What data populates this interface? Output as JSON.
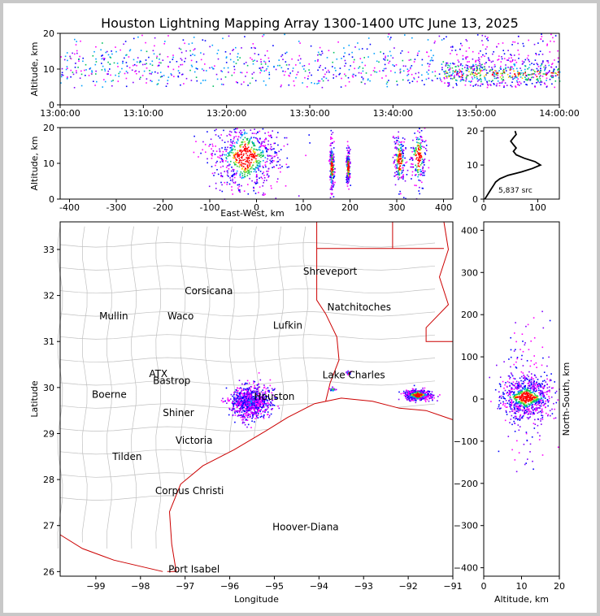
{
  "chart_data": [
    {
      "type": "scatter",
      "title": "Houston Lightning Mapping Array 1300-1400 UTC June 13, 2025",
      "ylabel": "Altitude, km",
      "xlim": [
        "13:00:00",
        "14:00:00"
      ],
      "ylim": [
        0,
        20
      ],
      "x_ticks": [
        "13:00:00",
        "13:10:00",
        "13:20:00",
        "13:30:00",
        "13:40:00",
        "13:50:00",
        "14:00:00"
      ],
      "y_ticks": [
        0,
        10,
        20
      ],
      "clusters": [
        {
          "t_start": "13:00:00",
          "t_end": "13:46:00",
          "alt_min": 5,
          "alt_max": 20,
          "center_alt": 10,
          "density": "low"
        },
        {
          "t_start": "13:46:00",
          "t_end": "14:00:00",
          "alt_min": 5,
          "alt_max": 20,
          "center_alt": 9,
          "density": "high"
        }
      ]
    },
    {
      "type": "scatter",
      "xlabel": "East-West, km",
      "ylabel": "Altitude, km",
      "xlim": [
        -420,
        420
      ],
      "ylim": [
        0,
        20
      ],
      "x_ticks": [
        -400,
        -300,
        -200,
        -100,
        0,
        100,
        200,
        300,
        400
      ],
      "y_ticks": [
        0,
        10,
        20
      ],
      "clusters": [
        {
          "x": -25,
          "x_spread": 60,
          "alt": 12,
          "alt_spread": 8
        },
        {
          "x": 160,
          "x_spread": 4,
          "alt": 9,
          "alt_spread": 6
        },
        {
          "x": 195,
          "x_spread": 3,
          "alt": 9,
          "alt_spread": 4
        },
        {
          "x": 305,
          "x_spread": 10,
          "alt": 11,
          "alt_spread": 7
        },
        {
          "x": 345,
          "x_spread": 15,
          "alt": 12,
          "alt_spread": 7
        }
      ]
    },
    {
      "type": "line",
      "xlim": [
        0,
        140
      ],
      "ylim": [
        0,
        21
      ],
      "x_ticks": [
        0,
        100
      ],
      "y_ticks": [
        0,
        10,
        20
      ],
      "annotation": "5,837 src",
      "profile": [
        [
          2,
          0
        ],
        [
          6,
          1
        ],
        [
          10,
          2
        ],
        [
          14,
          3
        ],
        [
          18,
          4
        ],
        [
          22,
          5
        ],
        [
          30,
          6
        ],
        [
          45,
          7
        ],
        [
          70,
          8
        ],
        [
          90,
          9
        ],
        [
          105,
          10
        ],
        [
          95,
          11
        ],
        [
          75,
          12
        ],
        [
          60,
          13
        ],
        [
          55,
          14
        ],
        [
          60,
          15
        ],
        [
          55,
          16
        ],
        [
          50,
          17
        ],
        [
          55,
          18
        ],
        [
          60,
          19
        ],
        [
          58,
          20
        ]
      ]
    },
    {
      "type": "scatter",
      "xlabel": "Longitude",
      "ylabel": "Latitude",
      "xlim": [
        -99.8,
        -91
      ],
      "ylim": [
        25.9,
        33.6
      ],
      "x_ticks": [
        -99,
        -98,
        -97,
        -96,
        -95,
        -94,
        -93,
        -92,
        -91
      ],
      "y_ticks": [
        26,
        27,
        28,
        29,
        30,
        31,
        32,
        33
      ],
      "cities": [
        {
          "name": "Shreveport",
          "lon": -93.75,
          "lat": 32.52,
          "color": "#000000"
        },
        {
          "name": "Corsicana",
          "lon": -96.47,
          "lat": 32.1,
          "color": "#000000"
        },
        {
          "name": "Natchitoches",
          "lon": -93.1,
          "lat": 31.75,
          "color": "#000000"
        },
        {
          "name": "Mullin",
          "lon": -98.6,
          "lat": 31.55,
          "color": "#f08040"
        },
        {
          "name": "Waco",
          "lon": -97.1,
          "lat": 31.55,
          "color": "#000000"
        },
        {
          "name": "Lufkin",
          "lon": -94.7,
          "lat": 31.35,
          "color": "#000000"
        },
        {
          "name": "ATX",
          "lon": -97.6,
          "lat": 30.3,
          "color": "#f08040"
        },
        {
          "name": "Bastrop",
          "lon": -97.3,
          "lat": 30.15,
          "color": "#000000"
        },
        {
          "name": "Lake Charles",
          "lon": -93.22,
          "lat": 30.27,
          "color": "#000000"
        },
        {
          "name": "Boerne",
          "lon": -98.7,
          "lat": 29.85,
          "color": "#000000"
        },
        {
          "name": "Houston",
          "lon": -95.0,
          "lat": 29.8,
          "color": "#f0a000"
        },
        {
          "name": "Shiner",
          "lon": -97.15,
          "lat": 29.45,
          "color": "#000000"
        },
        {
          "name": "Victoria",
          "lon": -96.8,
          "lat": 28.85,
          "color": "#000000"
        },
        {
          "name": "Tilden",
          "lon": -98.3,
          "lat": 28.5,
          "color": "#000000"
        },
        {
          "name": "Corpus Christi",
          "lon": -96.9,
          "lat": 27.75,
          "color": "#000000"
        },
        {
          "name": "Hoover-Diana",
          "lon": -94.3,
          "lat": 26.97,
          "color": "#2020e0"
        },
        {
          "name": "Port Isabel",
          "lon": -96.8,
          "lat": 26.05,
          "color": "#000000"
        }
      ],
      "clusters": [
        {
          "lon": -95.55,
          "lat": 29.7,
          "lon_spread": 0.4,
          "lat_spread": 0.3,
          "density": "medium"
        },
        {
          "lon": -91.8,
          "lat": 29.85,
          "lon_spread": 0.25,
          "lat_spread": 0.1,
          "density": "high"
        },
        {
          "lon": -93.7,
          "lat": 29.97,
          "lon_spread": 0.05,
          "lat_spread": 0.03,
          "density": "low"
        },
        {
          "lon": -93.35,
          "lat": 30.33,
          "lon_spread": 0.05,
          "lat_spread": 0.03,
          "density": "low"
        }
      ]
    },
    {
      "type": "scatter",
      "xlabel": "Altitude, km",
      "ylabel": "North-South, km",
      "xlim": [
        0,
        20
      ],
      "ylim": [
        -420,
        420
      ],
      "x_ticks": [
        0,
        10,
        20
      ],
      "y_ticks": [
        -400,
        -300,
        -200,
        -100,
        0,
        100,
        200,
        300,
        400
      ],
      "clusters": [
        {
          "alt": 11,
          "alt_spread": 6,
          "ns": 5,
          "ns_spread": 30
        }
      ]
    }
  ],
  "colors": {
    "frame_bg": "#c8c8c8",
    "border_us": "#cc0000",
    "county_lines": "#c0c0c0",
    "sources_low": "#0000ff",
    "sources_mid": "#00c060",
    "sources_high": "#ff0000",
    "profile_line": "#000000"
  }
}
